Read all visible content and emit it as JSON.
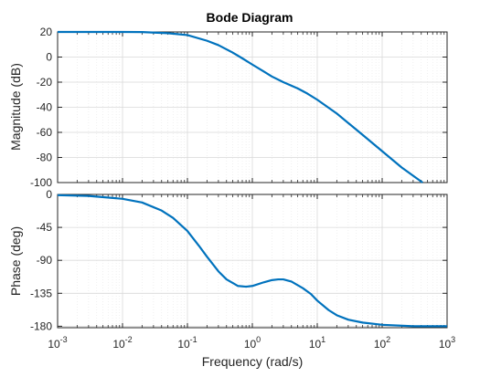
{
  "chart_data": {
    "type": "line",
    "title": "Bode Diagram",
    "xlabel": "Frequency  (rad/s)",
    "xscale": "log",
    "xlim": [
      0.001,
      1000
    ],
    "x_ticks": [
      {
        "value": 0.001,
        "base": "10",
        "exp": "-3"
      },
      {
        "value": 0.01,
        "base": "10",
        "exp": "-2"
      },
      {
        "value": 0.1,
        "base": "10",
        "exp": "-1"
      },
      {
        "value": 1,
        "base": "10",
        "exp": "0"
      },
      {
        "value": 10,
        "base": "10",
        "exp": "1"
      },
      {
        "value": 100,
        "base": "10",
        "exp": "2"
      },
      {
        "value": 1000,
        "base": "10",
        "exp": "3"
      }
    ],
    "grid": true,
    "color": "#0072BD",
    "panels": [
      {
        "name": "magnitude",
        "ylabel": "Magnitude (dB)",
        "ylim": [
          -100,
          20
        ],
        "yticks": [
          20,
          0,
          -20,
          -40,
          -60,
          -80,
          -100
        ],
        "series": [
          {
            "x": [
              0.001,
              0.003,
              0.01,
              0.02,
              0.05,
              0.1,
              0.2,
              0.3,
              0.5,
              0.7,
              1,
              1.5,
              2,
              3,
              5,
              7,
              10,
              20,
              50,
              100,
              200,
              420
            ],
            "y": [
              20,
              20,
              20,
              19.9,
              19,
              17.5,
              13,
              9.5,
              3.5,
              -1,
              -6,
              -11.5,
              -15.5,
              -20,
              -25,
              -29,
              -34,
              -45,
              -62,
              -75,
              -88,
              -100
            ]
          }
        ]
      },
      {
        "name": "phase",
        "ylabel": "Phase (deg)",
        "ylim": [
          -182,
          0
        ],
        "yticks": [
          0,
          -45,
          -90,
          -135,
          -180
        ],
        "series": [
          {
            "x": [
              0.001,
              0.003,
              0.01,
              0.02,
              0.04,
              0.06,
              0.1,
              0.15,
              0.2,
              0.3,
              0.4,
              0.6,
              0.8,
              1,
              1.5,
              2,
              2.5,
              3,
              4,
              6,
              8,
              10,
              15,
              20,
              30,
              50,
              100,
              300,
              1000
            ],
            "y": [
              -1,
              -2,
              -6,
              -11,
              -22,
              -32,
              -50,
              -70,
              -85,
              -105,
              -116,
              -125,
              -126,
              -125,
              -120,
              -117,
              -116,
              -116,
              -119,
              -128,
              -136,
              -145,
              -158,
              -165,
              -171,
              -175,
              -178,
              -180,
              -180
            ]
          }
        ]
      }
    ]
  }
}
